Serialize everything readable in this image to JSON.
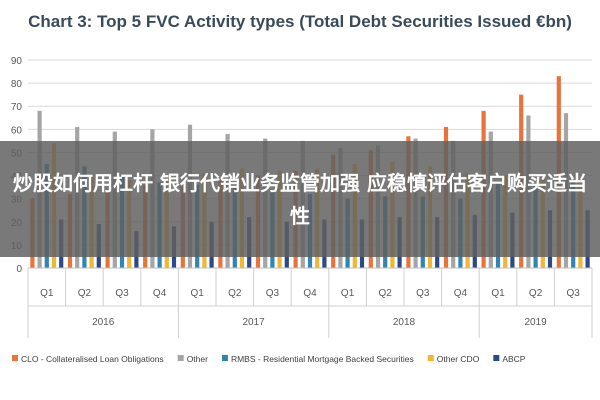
{
  "chart_data": {
    "type": "bar",
    "title": "Chart 3: Top 5 FVC Activity types (Total Debt Securities Issued €bn)",
    "xlabel": "",
    "ylabel": "",
    "ylim": [
      0,
      90
    ],
    "yticks": [
      0,
      10,
      20,
      30,
      40,
      50,
      60,
      70,
      80,
      90
    ],
    "grid": true,
    "legend_position": "bottom",
    "categories": [
      "Q1",
      "Q2",
      "Q3",
      "Q4",
      "Q1",
      "Q2",
      "Q3",
      "Q4",
      "Q1",
      "Q2",
      "Q3",
      "Q4",
      "Q1",
      "Q2",
      "Q3"
    ],
    "year_groups": [
      {
        "label": "2016",
        "count": 4
      },
      {
        "label": "2017",
        "count": 4
      },
      {
        "label": "2018",
        "count": 4
      },
      {
        "label": "2019",
        "count": 3
      }
    ],
    "series": [
      {
        "name": "CLO - Collateralised Loan Obligations",
        "color": "#e8743b",
        "values": [
          30,
          32,
          34,
          36,
          37,
          38,
          40,
          42,
          49,
          51,
          57,
          61,
          68,
          75,
          83
        ]
      },
      {
        "name": "Other",
        "color": "#a5a5a5",
        "values": [
          68,
          61,
          59,
          60,
          62,
          58,
          56,
          55,
          52,
          53,
          56,
          55,
          59,
          66,
          67
        ]
      },
      {
        "name": "RMBS - Residential Mortgage Backed Securities",
        "color": "#2f86b5",
        "values": [
          45,
          44,
          40,
          37,
          36,
          35,
          33,
          32,
          30,
          31,
          31,
          30,
          37,
          36,
          37
        ]
      },
      {
        "name": "Other CDO",
        "color": "#f2b632",
        "values": [
          54,
          40,
          38,
          40,
          41,
          43,
          42,
          43,
          45,
          46,
          44,
          41,
          40,
          38,
          38
        ]
      },
      {
        "name": "ABCP",
        "color": "#2c4a8a",
        "values": [
          21,
          19,
          16,
          18,
          20,
          22,
          20,
          21,
          21,
          22,
          22,
          23,
          24,
          25,
          25
        ]
      }
    ]
  },
  "overlay": {
    "text": "炒股如何用杠杆 银行代销业务监管加强 应稳慎评估客户购买适当性"
  }
}
